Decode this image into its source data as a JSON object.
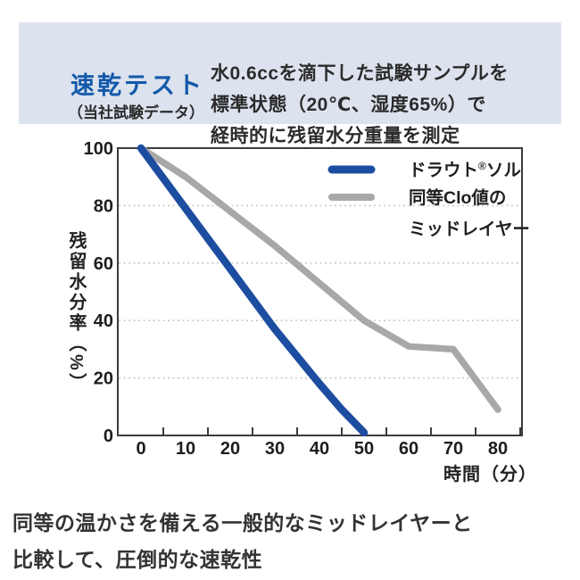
{
  "header": {
    "title": "速乾テスト",
    "subtitle": "（当社試験データ）",
    "title_color": "#1259ab",
    "background_color": "#dce2ee",
    "description_lines": [
      "水0.6ccを滴下した試験サンプルを",
      "標準状態（20℃、湿度65%）で",
      "経時的に残留水分重量を測定"
    ]
  },
  "chart_data": {
    "type": "line",
    "title": "",
    "xlabel": "時間（分）",
    "ylabel": "残留水分率（%）",
    "xlim": [
      -5.2,
      85.4
    ],
    "ylim": [
      0,
      100
    ],
    "x_tick_labels": [
      0,
      10,
      20,
      30,
      40,
      50,
      60,
      70,
      80
    ],
    "x_tick_marks": [
      5,
      15,
      25,
      35,
      45,
      55,
      65,
      75,
      85
    ],
    "y_tick_labels": [
      0,
      20,
      40,
      60,
      80,
      100
    ],
    "y_gridlines": [
      20,
      40,
      60,
      80
    ],
    "grid": "horizontal-dotted",
    "legend_position": "top-right-inside",
    "colors": {
      "grid": "#c9c9c9",
      "spine": "#3c3c3c",
      "tick_text": "#1e1e1e",
      "legend_text": "#1f1f1f"
    },
    "series": [
      {
        "name": "同等Clo値のミッドレイヤー",
        "legend_lines": [
          "同等Clo値の",
          "ミッドレイヤー"
        ],
        "color": "#a8a8a8",
        "width": 7.5,
        "x": [
          0,
          10,
          20,
          30,
          40,
          50,
          60,
          70,
          80
        ],
        "values": [
          100,
          90,
          78,
          66,
          53,
          40,
          31,
          30,
          9
        ]
      },
      {
        "name": "ドラウト®ソル",
        "legend_lines": [
          "ドラウト®ソル"
        ],
        "color": "#1c4da0",
        "width": 8.5,
        "x": [
          0,
          10,
          20,
          30,
          40,
          45,
          50
        ],
        "values": [
          100,
          79,
          58,
          37,
          18,
          9,
          1
        ]
      }
    ]
  },
  "caption": {
    "lines": [
      "同等の温かさを備える一般的なミッドレイヤーと",
      "比較して、圧倒的な速乾性"
    ]
  }
}
